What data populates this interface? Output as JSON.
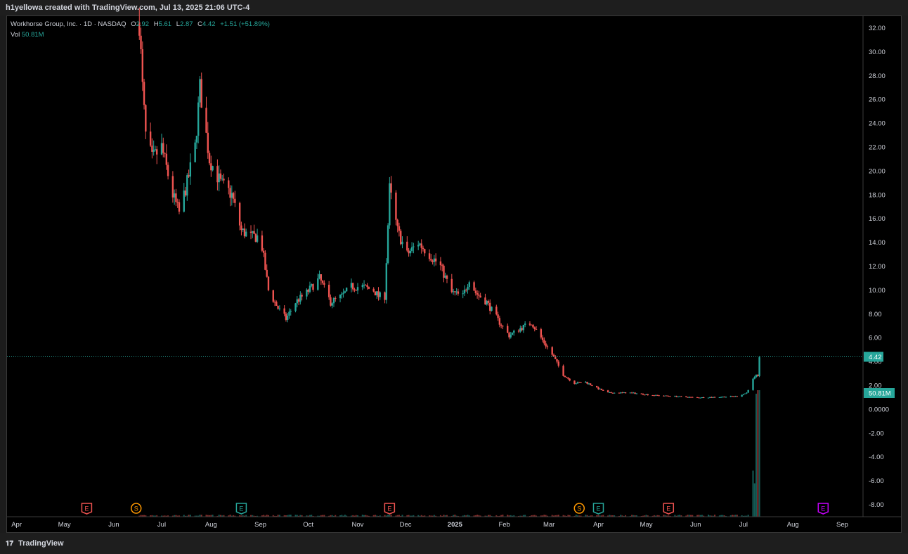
{
  "header": {
    "credit": "h1yellowa created with TradingView.com, Jul 13, 2025 21:06 UTC-4"
  },
  "legend": {
    "symbol": "Workhorse Group, Inc. · 1D · NASDAQ",
    "o_label": "O",
    "o_value": "2.92",
    "h_label": "H",
    "h_value": "5.61",
    "l_label": "L",
    "l_value": "2.87",
    "c_label": "C",
    "c_value": "4.42",
    "change": "+1.51 (+51.89%)",
    "vol_label": "Vol",
    "vol_value": "50.81M"
  },
  "footer": {
    "brand": "TradingView"
  },
  "colors": {
    "up": "#26a69a",
    "down": "#ef5350",
    "background": "#000000",
    "grid": "#000000"
  },
  "chart_data": {
    "type": "candlestick",
    "ylim": [
      -9,
      33
    ],
    "y_ticks": [
      "32.00",
      "30.00",
      "28.00",
      "26.00",
      "24.00",
      "22.00",
      "20.00",
      "18.00",
      "16.00",
      "14.00",
      "12.00",
      "10.00",
      "8.00",
      "6.00",
      "4.00",
      "2.00",
      "0.0000",
      "-2.00",
      "-4.00",
      "-6.00",
      "-8.00"
    ],
    "y_tick_values": [
      32,
      30,
      28,
      26,
      24,
      22,
      20,
      18,
      16,
      14,
      12,
      10,
      8,
      6,
      4,
      2,
      0,
      -2,
      -4,
      -6,
      -8
    ],
    "x_ticks": [
      "Apr",
      "May",
      "Jun",
      "Jul",
      "Aug",
      "Sep",
      "Oct",
      "Nov",
      "Dec",
      "2025",
      "Feb",
      "Mar",
      "Apr",
      "May",
      "Jun",
      "Jul",
      "Aug",
      "Sep"
    ],
    "x_tick_dates": [
      "2024-04-01",
      "2024-05-01",
      "2024-06-01",
      "2024-07-01",
      "2024-08-01",
      "2024-09-01",
      "2024-10-01",
      "2024-11-01",
      "2024-12-01",
      "2025-01-01",
      "2025-02-01",
      "2025-03-01",
      "2025-04-01",
      "2025-05-01",
      "2025-06-01",
      "2025-07-01",
      "2025-08-01",
      "2025-09-01"
    ],
    "x_range": [
      "2024-03-26",
      "2025-09-14"
    ],
    "last_price": 4.42,
    "last_price_label": "4.42",
    "last_volume_label": "50.81M",
    "price_anchors": [
      [
        "2024-06-17",
        32.5
      ],
      [
        "2024-06-19",
        27
      ],
      [
        "2024-06-21",
        23
      ],
      [
        "2024-06-25",
        21
      ],
      [
        "2024-07-01",
        22
      ],
      [
        "2024-07-08",
        18
      ],
      [
        "2024-07-12",
        16.5
      ],
      [
        "2024-07-17",
        19
      ],
      [
        "2024-07-22",
        22
      ],
      [
        "2024-07-25",
        27
      ],
      [
        "2024-07-31",
        21
      ],
      [
        "2024-08-07",
        19
      ],
      [
        "2024-08-14",
        18
      ],
      [
        "2024-08-20",
        15
      ],
      [
        "2024-08-26",
        14.5
      ],
      [
        "2024-09-01",
        14.5
      ],
      [
        "2024-09-06",
        10
      ],
      [
        "2024-09-12",
        8.5
      ],
      [
        "2024-09-17",
        7.6
      ],
      [
        "2024-09-23",
        9
      ],
      [
        "2024-09-30",
        9.8
      ],
      [
        "2024-10-08",
        11
      ],
      [
        "2024-10-15",
        9
      ],
      [
        "2024-10-22",
        9.5
      ],
      [
        "2024-10-28",
        10.3
      ],
      [
        "2024-11-04",
        10.3
      ],
      [
        "2024-11-11",
        10
      ],
      [
        "2024-11-14",
        9.5
      ],
      [
        "2024-11-18",
        9.5
      ],
      [
        "2024-11-21",
        18.5
      ],
      [
        "2024-11-26",
        15
      ],
      [
        "2024-12-02",
        13
      ],
      [
        "2024-12-09",
        14
      ],
      [
        "2024-12-16",
        13
      ],
      [
        "2024-12-23",
        12
      ],
      [
        "2024-12-30",
        9.8
      ],
      [
        "2025-01-06",
        9.5
      ],
      [
        "2025-01-10",
        11
      ],
      [
        "2025-01-14",
        9.8
      ],
      [
        "2025-01-21",
        9
      ],
      [
        "2025-01-28",
        7.5
      ],
      [
        "2025-02-04",
        6.2
      ],
      [
        "2025-02-11",
        6.8
      ],
      [
        "2025-02-18",
        7.3
      ],
      [
        "2025-02-25",
        5.8
      ],
      [
        "2025-03-04",
        4.4
      ],
      [
        "2025-03-10",
        2.9
      ],
      [
        "2025-03-17",
        2.2
      ],
      [
        "2025-03-24",
        2.3
      ],
      [
        "2025-03-31",
        1.8
      ],
      [
        "2025-04-07",
        1.4
      ],
      [
        "2025-04-21",
        1.4
      ],
      [
        "2025-05-05",
        1.2
      ],
      [
        "2025-05-19",
        1.1
      ],
      [
        "2025-06-02",
        1.0
      ],
      [
        "2025-06-16",
        1.05
      ],
      [
        "2025-06-27",
        1.1
      ],
      [
        "2025-07-03",
        1.4
      ],
      [
        "2025-07-08",
        2.8
      ],
      [
        "2025-07-10",
        2.9
      ],
      [
        "2025-07-11",
        4.42
      ]
    ],
    "event_markers": [
      {
        "date": "2024-05-15",
        "letter": "E",
        "color": "#ef5350"
      },
      {
        "date": "2024-06-15",
        "letter": "S",
        "color": "#ff9800"
      },
      {
        "date": "2024-08-20",
        "letter": "E",
        "color": "#26a69a"
      },
      {
        "date": "2024-11-21",
        "letter": "E",
        "color": "#ef5350"
      },
      {
        "date": "2025-03-20",
        "letter": "S",
        "color": "#ff9800"
      },
      {
        "date": "2025-04-01",
        "letter": "E",
        "color": "#26a69a"
      },
      {
        "date": "2025-05-15",
        "letter": "E",
        "color": "#ef5350"
      },
      {
        "date": "2025-08-20",
        "letter": "E",
        "color": "#c800ff"
      }
    ]
  }
}
